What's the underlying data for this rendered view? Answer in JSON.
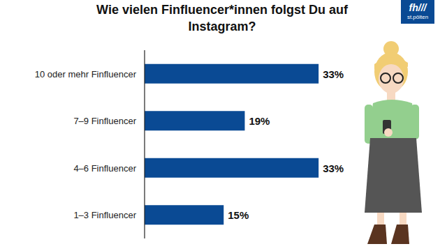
{
  "chart_data": {
    "type": "bar",
    "title": "Wie vielen Finfluencer*innen folgst Du auf Instagram?",
    "orientation": "horizontal",
    "categories": [
      "10 oder mehr Finfluencer",
      "7–9 Finfluencer",
      "4–6 Finfluencer",
      "1–3 Finfluencer"
    ],
    "values": [
      33,
      19,
      33,
      15
    ],
    "value_labels": [
      "33%",
      "19%",
      "33%",
      "15%"
    ],
    "color": "#0a4a94",
    "xlim": [
      0,
      40
    ],
    "grid": false,
    "data_labels": true,
    "tick_labels": "y"
  },
  "logo": {
    "name": "fh///",
    "place": "st.pölten"
  }
}
